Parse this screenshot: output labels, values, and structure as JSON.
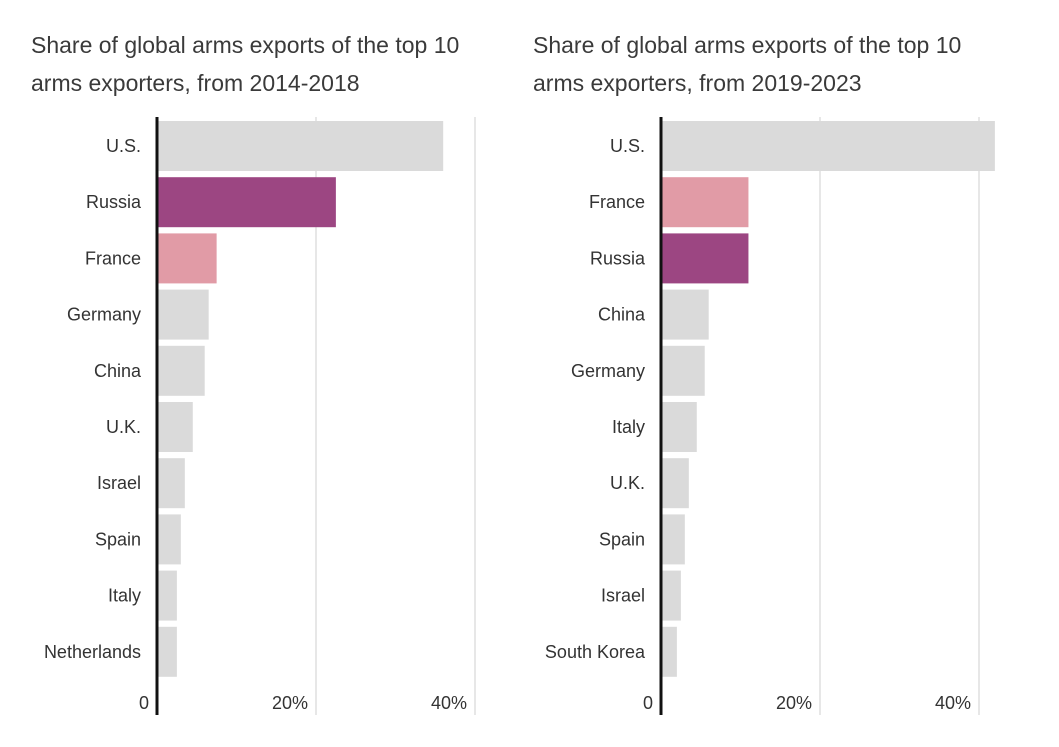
{
  "chart_data": [
    {
      "type": "bar",
      "orientation": "horizontal",
      "title_lines": [
        "Share of global arms exports of the top 10",
        "arms exporters, from 2014-2018"
      ],
      "categories": [
        "U.S.",
        "Russia",
        "France",
        "Germany",
        "China",
        "U.K.",
        "Israel",
        "Spain",
        "Italy",
        "Netherlands"
      ],
      "values": [
        36,
        22.5,
        7.5,
        6.5,
        6,
        4.5,
        3.5,
        3,
        2.5,
        2.5
      ],
      "colors": [
        "#dadada",
        "#9c4682",
        "#e19ba6",
        "#dadada",
        "#dadada",
        "#dadada",
        "#dadada",
        "#dadada",
        "#dadada",
        "#dadada"
      ],
      "xlim": [
        0,
        40
      ],
      "ticks": [
        {
          "value": 0,
          "label": "0"
        },
        {
          "value": 20,
          "label": "20%"
        },
        {
          "value": 40,
          "label": "40%"
        }
      ],
      "grid": true
    },
    {
      "type": "bar",
      "orientation": "horizontal",
      "title_lines": [
        "Share of global arms exports of the top 10",
        "arms exporters, from 2019-2023"
      ],
      "categories": [
        "U.S.",
        "France",
        "Russia",
        "China",
        "Germany",
        "Italy",
        "U.K.",
        "Spain",
        "Israel",
        "South Korea"
      ],
      "values": [
        42,
        11,
        11,
        6,
        5.5,
        4.5,
        3.5,
        3,
        2.5,
        2
      ],
      "colors": [
        "#dadada",
        "#e19ba6",
        "#9c4682",
        "#dadada",
        "#dadada",
        "#dadada",
        "#dadada",
        "#dadada",
        "#dadada",
        "#dadada"
      ],
      "xlim": [
        0,
        40
      ],
      "ticks": [
        {
          "value": 0,
          "label": "0"
        },
        {
          "value": 20,
          "label": "20%"
        },
        {
          "value": 40,
          "label": "40%"
        }
      ],
      "grid": true
    }
  ]
}
